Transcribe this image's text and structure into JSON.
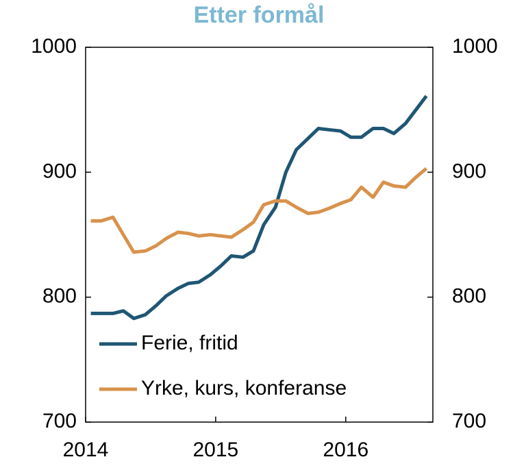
{
  "chart_data": {
    "type": "line",
    "title": "Etter formål",
    "x": [
      2014.04,
      2014.12,
      2014.21,
      2014.29,
      2014.37,
      2014.46,
      2014.54,
      2014.62,
      2014.71,
      2014.79,
      2014.87,
      2014.96,
      2015.04,
      2015.12,
      2015.21,
      2015.29,
      2015.37,
      2015.46,
      2015.54,
      2015.62,
      2015.71,
      2015.79,
      2015.87,
      2015.96,
      2016.04,
      2016.12,
      2016.21,
      2016.29,
      2016.37,
      2016.46,
      2016.54,
      2016.62
    ],
    "series": [
      {
        "name": "Ferie, fritid",
        "color": "#1f5674",
        "values": [
          787,
          787,
          787,
          789,
          783,
          786,
          793,
          801,
          807,
          811,
          812,
          818,
          825,
          833,
          832,
          837,
          858,
          872,
          900,
          918,
          927,
          935,
          934,
          933,
          928,
          928,
          935,
          935,
          931,
          939,
          950,
          961
        ]
      },
      {
        "name": "Yrke, kurs, konferanse",
        "color": "#d8924c",
        "values": [
          861,
          861,
          864,
          850,
          836,
          837,
          841,
          847,
          852,
          851,
          849,
          850,
          849,
          848,
          854,
          860,
          874,
          877,
          877,
          872,
          867,
          868,
          871,
          875,
          878,
          888,
          880,
          892,
          889,
          888,
          896,
          903
        ]
      }
    ],
    "xlim": [
      2014,
      2016.67
    ],
    "xticks": [
      2014,
      2015,
      2016
    ],
    "ylim": [
      700,
      1000
    ],
    "yticks": [
      700,
      800,
      900,
      1000
    ],
    "y2lim": [
      700,
      1000
    ],
    "y2ticks": [
      700,
      800,
      900,
      1000
    ],
    "legend": "lower left"
  }
}
